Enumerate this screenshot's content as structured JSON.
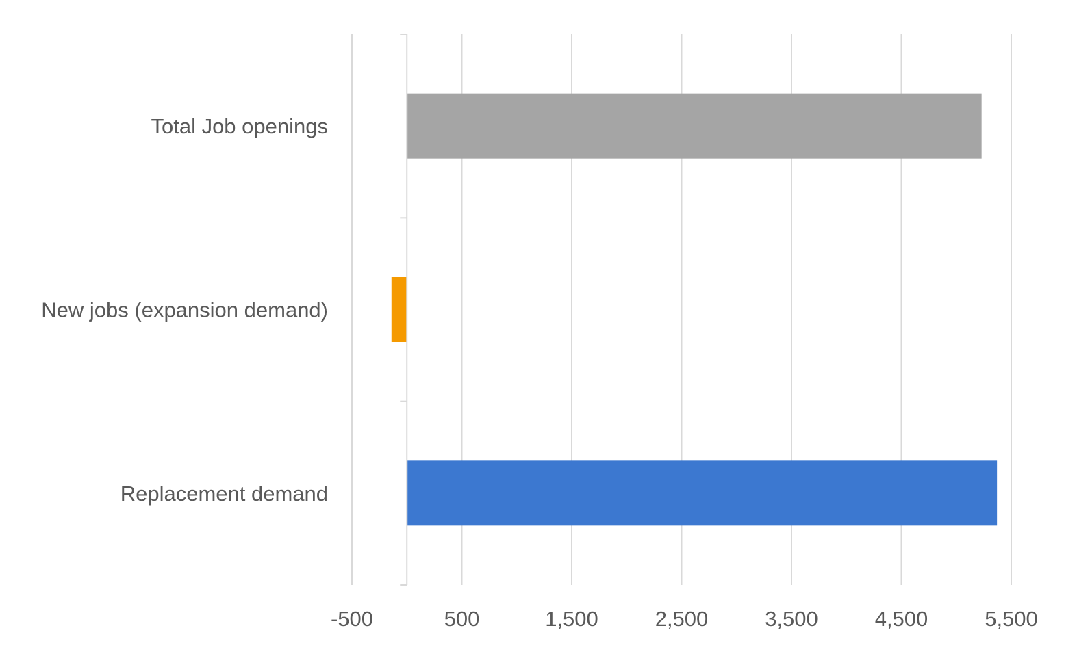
{
  "chart_data": {
    "type": "bar",
    "orientation": "horizontal",
    "categories": [
      "Total Job openings",
      "New jobs (expansion demand)",
      "Replacement demand"
    ],
    "values": [
      5230,
      -140,
      5370
    ],
    "colors": [
      "#a5a5a5",
      "#f59a00",
      "#3c78d0"
    ],
    "xlim": [
      -500,
      5500
    ],
    "xticks": [
      -500,
      500,
      1500,
      2500,
      3500,
      4500,
      5500
    ],
    "xtick_labels": [
      "-500",
      "500",
      "1,500",
      "2,500",
      "3,500",
      "4,500",
      "5,500"
    ],
    "title": "",
    "xlabel": "",
    "ylabel": "",
    "grid": "vertical",
    "legend": "none"
  }
}
